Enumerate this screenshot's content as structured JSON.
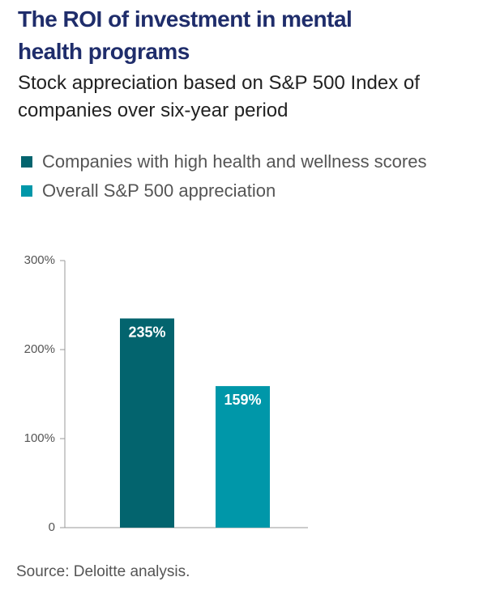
{
  "chart_data": {
    "type": "bar",
    "title": "The ROI of investment in mental health programs",
    "subtitle": "Stock appreciation based on S&P 500 Index of companies over six-year period",
    "categories": [
      null
    ],
    "series": [
      {
        "name": "Companies with high health and wellness scores",
        "color": "#03646e",
        "values": [
          235
        ],
        "value_labels": [
          "235%"
        ]
      },
      {
        "name": "Overall S&P 500 appreciation",
        "color": "#0097a9",
        "values": [
          159
        ],
        "value_labels": [
          "159%"
        ]
      }
    ],
    "ylim": [
      0,
      300
    ],
    "yticks": [
      0,
      {
        "value": 100,
        "label": "100%"
      },
      {
        "value": 200,
        "label": "200%"
      },
      {
        "value": 300,
        "label": "300%"
      }
    ],
    "legend": "top-left",
    "source": "Source: Deloitte analysis."
  }
}
